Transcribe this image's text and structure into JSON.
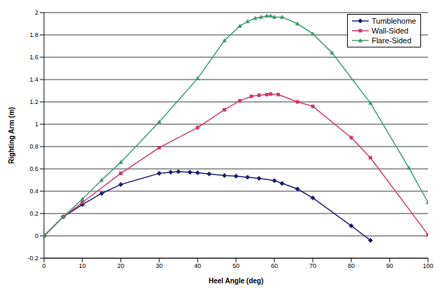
{
  "chart_data": {
    "type": "line",
    "x_label": "Heel Angle (deg)",
    "y_label": "Righting Arm (m)",
    "xlim": [
      0,
      100
    ],
    "xticks": [
      0,
      10,
      20,
      30,
      40,
      50,
      60,
      70,
      80,
      90,
      100
    ],
    "ylim": [
      -0.2,
      2
    ],
    "yticks": [
      -0.2,
      0,
      0.2,
      0.4,
      0.6,
      0.8,
      1,
      1.2,
      1.4,
      1.6,
      1.8,
      2
    ],
    "grid": "y",
    "legend": "upper right",
    "series": [
      {
        "name": "Tumblehome",
        "color": "#1a1a6e",
        "marker": "diamond",
        "x": [
          0,
          5,
          10,
          15,
          20,
          30,
          33,
          35,
          38,
          40,
          43,
          47,
          50,
          53,
          56,
          60,
          62,
          66,
          70,
          80,
          85
        ],
        "values": [
          0,
          0.17,
          0.28,
          0.38,
          0.46,
          0.56,
          0.57,
          0.575,
          0.57,
          0.565,
          0.555,
          0.54,
          0.535,
          0.525,
          0.515,
          0.495,
          0.47,
          0.42,
          0.34,
          0.09,
          -0.04
        ]
      },
      {
        "name": "Wall-Sided",
        "color": "#d1336b",
        "marker": "square",
        "x": [
          0,
          5,
          10,
          20,
          30,
          40,
          47,
          51,
          54,
          56,
          58,
          59,
          61,
          66,
          70,
          80,
          85,
          100
        ],
        "values": [
          0,
          0.17,
          0.3,
          0.56,
          0.79,
          0.97,
          1.13,
          1.21,
          1.25,
          1.26,
          1.265,
          1.27,
          1.265,
          1.2,
          1.16,
          0.88,
          0.7,
          0.01
        ]
      },
      {
        "name": "Flare-Sided",
        "color": "#3a9a6a",
        "marker": "triangle",
        "x": [
          0,
          5,
          10,
          15,
          20,
          30,
          40,
          47,
          51,
          53,
          55,
          56.5,
          58,
          59,
          60,
          62,
          66,
          70,
          75,
          85,
          95,
          100
        ],
        "values": [
          0,
          0.17,
          0.33,
          0.5,
          0.66,
          1.02,
          1.41,
          1.75,
          1.88,
          1.92,
          1.95,
          1.96,
          1.97,
          1.97,
          1.96,
          1.96,
          1.9,
          1.81,
          1.64,
          1.19,
          0.61,
          0.3
        ]
      }
    ]
  }
}
